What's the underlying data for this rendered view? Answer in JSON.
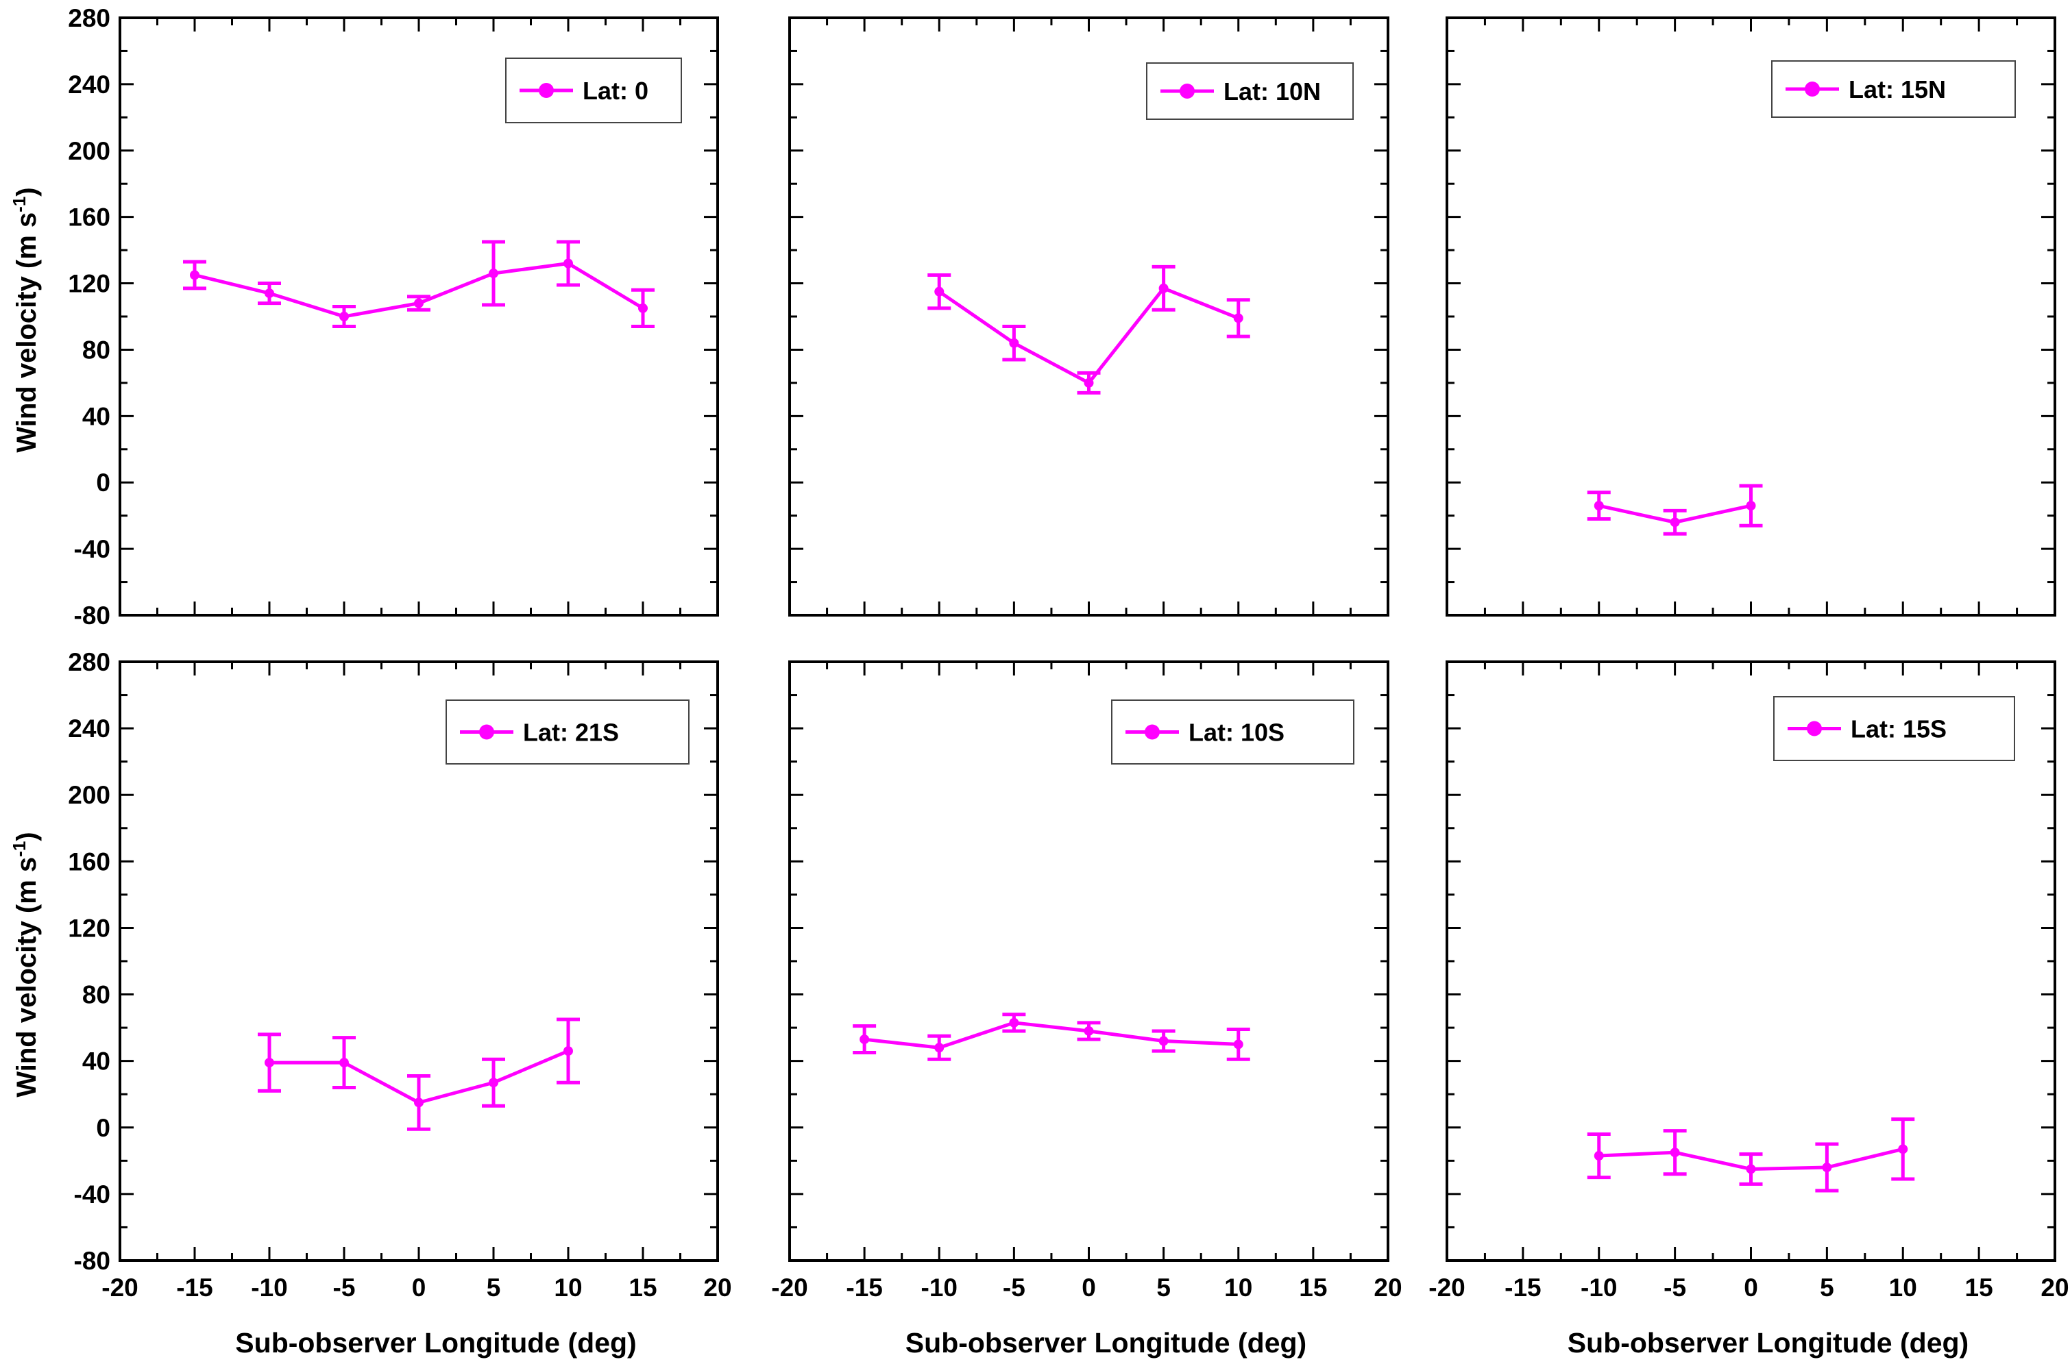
{
  "figure": {
    "series_color": "#ff00ff",
    "xlabel": "Sub-observer Longitude (deg)",
    "ylabel_main": "Wind velocity (m s",
    "ylabel_sup": "-1",
    "ylabel_close": ")"
  },
  "chart_data": [
    {
      "type": "line",
      "legend": "Lat: 0",
      "legend_position": "top-right",
      "xlim": [
        -20,
        20
      ],
      "ylim": [
        -80,
        280
      ],
      "xticks": [
        "-20",
        "-15",
        "-10",
        "-5",
        "0",
        "5",
        "10",
        "15",
        "20"
      ],
      "yticks": [
        "-80",
        "-40",
        "0",
        "40",
        "80",
        "120",
        "160",
        "200",
        "240",
        "280"
      ],
      "x": [
        -15,
        -10,
        -5,
        0,
        5,
        10,
        15
      ],
      "y": [
        125,
        114,
        100,
        108,
        126,
        132,
        105
      ],
      "error": [
        8,
        6,
        6,
        4,
        19,
        13,
        11
      ]
    },
    {
      "type": "line",
      "legend": "Lat: 10N",
      "legend_position": "top-right",
      "xlim": [
        -20,
        20
      ],
      "ylim": [
        -80,
        280
      ],
      "xticks": [
        "-20",
        "-15",
        "-10",
        "-5",
        "0",
        "5",
        "10",
        "15",
        "20"
      ],
      "yticks": [
        "-80",
        "-40",
        "0",
        "40",
        "80",
        "120",
        "160",
        "200",
        "240",
        "280"
      ],
      "x": [
        -10,
        -5,
        0,
        5,
        10
      ],
      "y": [
        115,
        84,
        60,
        117,
        99
      ],
      "error": [
        10,
        10,
        6,
        13,
        11
      ]
    },
    {
      "type": "line",
      "legend": "Lat: 15N",
      "legend_position": "top-right",
      "xlim": [
        -20,
        20
      ],
      "ylim": [
        -80,
        280
      ],
      "xticks": [
        "-20",
        "-15",
        "-10",
        "-5",
        "0",
        "5",
        "10",
        "15",
        "20"
      ],
      "yticks": [
        "-80",
        "-40",
        "0",
        "40",
        "80",
        "120",
        "160",
        "200",
        "240",
        "280"
      ],
      "x": [
        -10,
        -5,
        0
      ],
      "y": [
        -14,
        -24,
        -14
      ],
      "error": [
        8,
        7,
        12
      ]
    },
    {
      "type": "line",
      "legend": "Lat: 21S",
      "legend_position": "top-right",
      "xlim": [
        -20,
        20
      ],
      "ylim": [
        -80,
        280
      ],
      "xticks": [
        "-20",
        "-15",
        "-10",
        "-5",
        "0",
        "5",
        "10",
        "15",
        "20"
      ],
      "yticks": [
        "-80",
        "-40",
        "0",
        "40",
        "80",
        "120",
        "160",
        "200",
        "240",
        "280"
      ],
      "x": [
        -10,
        -5,
        0,
        5,
        10
      ],
      "y": [
        39,
        39,
        15,
        27,
        46
      ],
      "error": [
        17,
        15,
        16,
        14,
        19
      ]
    },
    {
      "type": "line",
      "legend": "Lat: 10S",
      "legend_position": "top-right",
      "xlim": [
        -20,
        20
      ],
      "ylim": [
        -80,
        280
      ],
      "xticks": [
        "-20",
        "-15",
        "-10",
        "-5",
        "0",
        "5",
        "10",
        "15",
        "20"
      ],
      "yticks": [
        "-80",
        "-40",
        "0",
        "40",
        "80",
        "120",
        "160",
        "200",
        "240",
        "280"
      ],
      "x": [
        -15,
        -10,
        -5,
        0,
        5,
        10
      ],
      "y": [
        53,
        48,
        63,
        58,
        52,
        50
      ],
      "error": [
        8,
        7,
        5,
        5,
        6,
        9
      ]
    },
    {
      "type": "line",
      "legend": "Lat: 15S",
      "legend_position": "top-right",
      "xlim": [
        -20,
        20
      ],
      "ylim": [
        -80,
        280
      ],
      "xticks": [
        "-20",
        "-15",
        "-10",
        "-5",
        "0",
        "5",
        "10",
        "15",
        "20"
      ],
      "yticks": [
        "-80",
        "-40",
        "0",
        "40",
        "80",
        "120",
        "160",
        "200",
        "240",
        "280"
      ],
      "x": [
        -10,
        -5,
        0,
        5,
        10
      ],
      "y": [
        -17,
        -15,
        -25,
        -24,
        -13
      ],
      "error": [
        13,
        13,
        9,
        14,
        18
      ]
    }
  ]
}
